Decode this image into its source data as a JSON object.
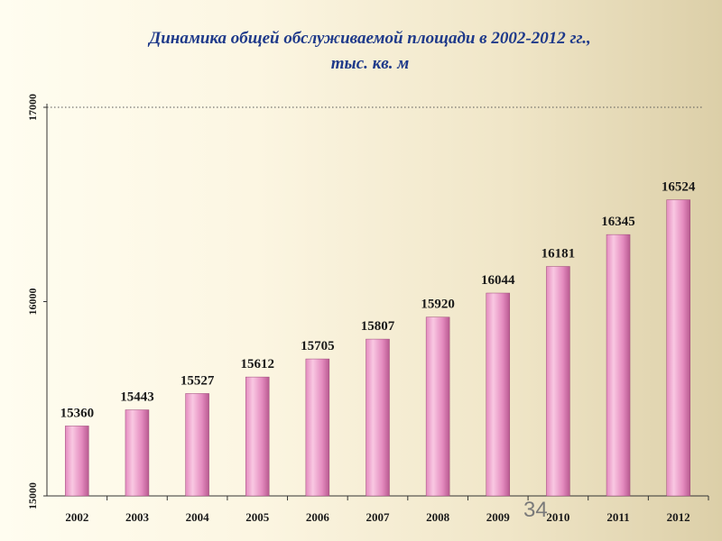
{
  "title": {
    "line1": "Динамика общей обслуживаемой площади в 2002-2012 гг.,",
    "line2": "тыс. кв. м"
  },
  "slide_number": "34",
  "colors": {
    "bar_light": "#f9c8e2",
    "bar_mid": "#e48bbf",
    "bar_dark": "#b85a90",
    "title": "#1f3a8a",
    "label": "#1a1a1a"
  },
  "chart_data": {
    "type": "bar",
    "title": "Динамика общей обслуживаемой площади в 2002-2012 гг., тыс. кв. м",
    "categories": [
      "2002",
      "2003",
      "2004",
      "2005",
      "2006",
      "2007",
      "2008",
      "2009",
      "2010",
      "2011",
      "2012"
    ],
    "values": [
      15360,
      15443,
      15527,
      15612,
      15705,
      15807,
      15920,
      16044,
      16181,
      16345,
      16524
    ],
    "value_labels": [
      "15360",
      "15443",
      "15527",
      "15612",
      "15705",
      "15807",
      "15920",
      "16044",
      "16181",
      "16345",
      "16524"
    ],
    "yticks": [
      15000,
      16000,
      17000
    ],
    "ytick_labels": [
      "15000",
      "16000",
      "17000"
    ],
    "ylim": [
      15000,
      17000
    ],
    "xlabel": "",
    "ylabel": "",
    "grid": "dotted line at top only",
    "legend": "none"
  }
}
